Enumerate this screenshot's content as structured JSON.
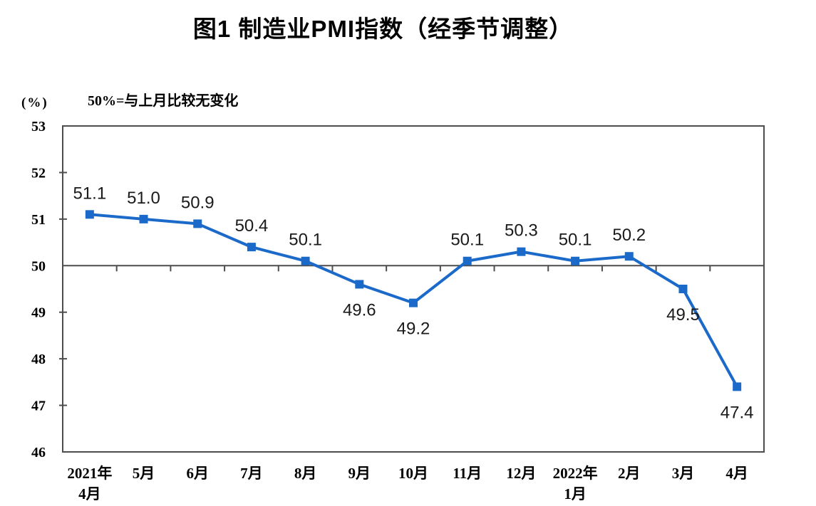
{
  "chart_data": {
    "type": "line",
    "title": "图1 制造业PMI指数（经季节调整）",
    "unit_label": "(%)",
    "annotation": "50%=与上月比较无变化",
    "categories": [
      "2021年4月",
      "5月",
      "6月",
      "7月",
      "8月",
      "9月",
      "10月",
      "11月",
      "12月",
      "2022年1月",
      "2月",
      "3月",
      "4月"
    ],
    "x_tick_lines": [
      [
        "2021年",
        "4月"
      ],
      [
        "5月"
      ],
      [
        "6月"
      ],
      [
        "7月"
      ],
      [
        "8月"
      ],
      [
        "9月"
      ],
      [
        "10月"
      ],
      [
        "11月"
      ],
      [
        "12月"
      ],
      [
        "2022年",
        "1月"
      ],
      [
        "2月"
      ],
      [
        "3月"
      ],
      [
        "4月"
      ]
    ],
    "series": [
      {
        "name": "制造业PMI指数",
        "values": [
          51.1,
          51.0,
          50.9,
          50.4,
          50.1,
          49.6,
          49.2,
          50.1,
          50.3,
          50.1,
          50.2,
          49.5,
          47.4
        ],
        "data_labels": [
          "51.1",
          "51.0",
          "50.9",
          "50.4",
          "50.1",
          "49.6",
          "49.2",
          "50.1",
          "50.3",
          "50.1",
          "50.2",
          "49.5",
          "47.4"
        ],
        "label_positions": [
          "above",
          "above",
          "above",
          "above",
          "above",
          "below",
          "below",
          "above",
          "above",
          "above",
          "above",
          "below",
          "below"
        ],
        "color": "#1B6AC9",
        "marker": "square"
      }
    ],
    "ylim": [
      46,
      53
    ],
    "yticks": [
      46,
      47,
      48,
      49,
      50,
      51,
      52,
      53
    ],
    "reference_line_y": 50,
    "grid": false,
    "legend_position": "none",
    "axis_color": "#4D4D4D",
    "data_label_color": "#1a1a1a"
  }
}
